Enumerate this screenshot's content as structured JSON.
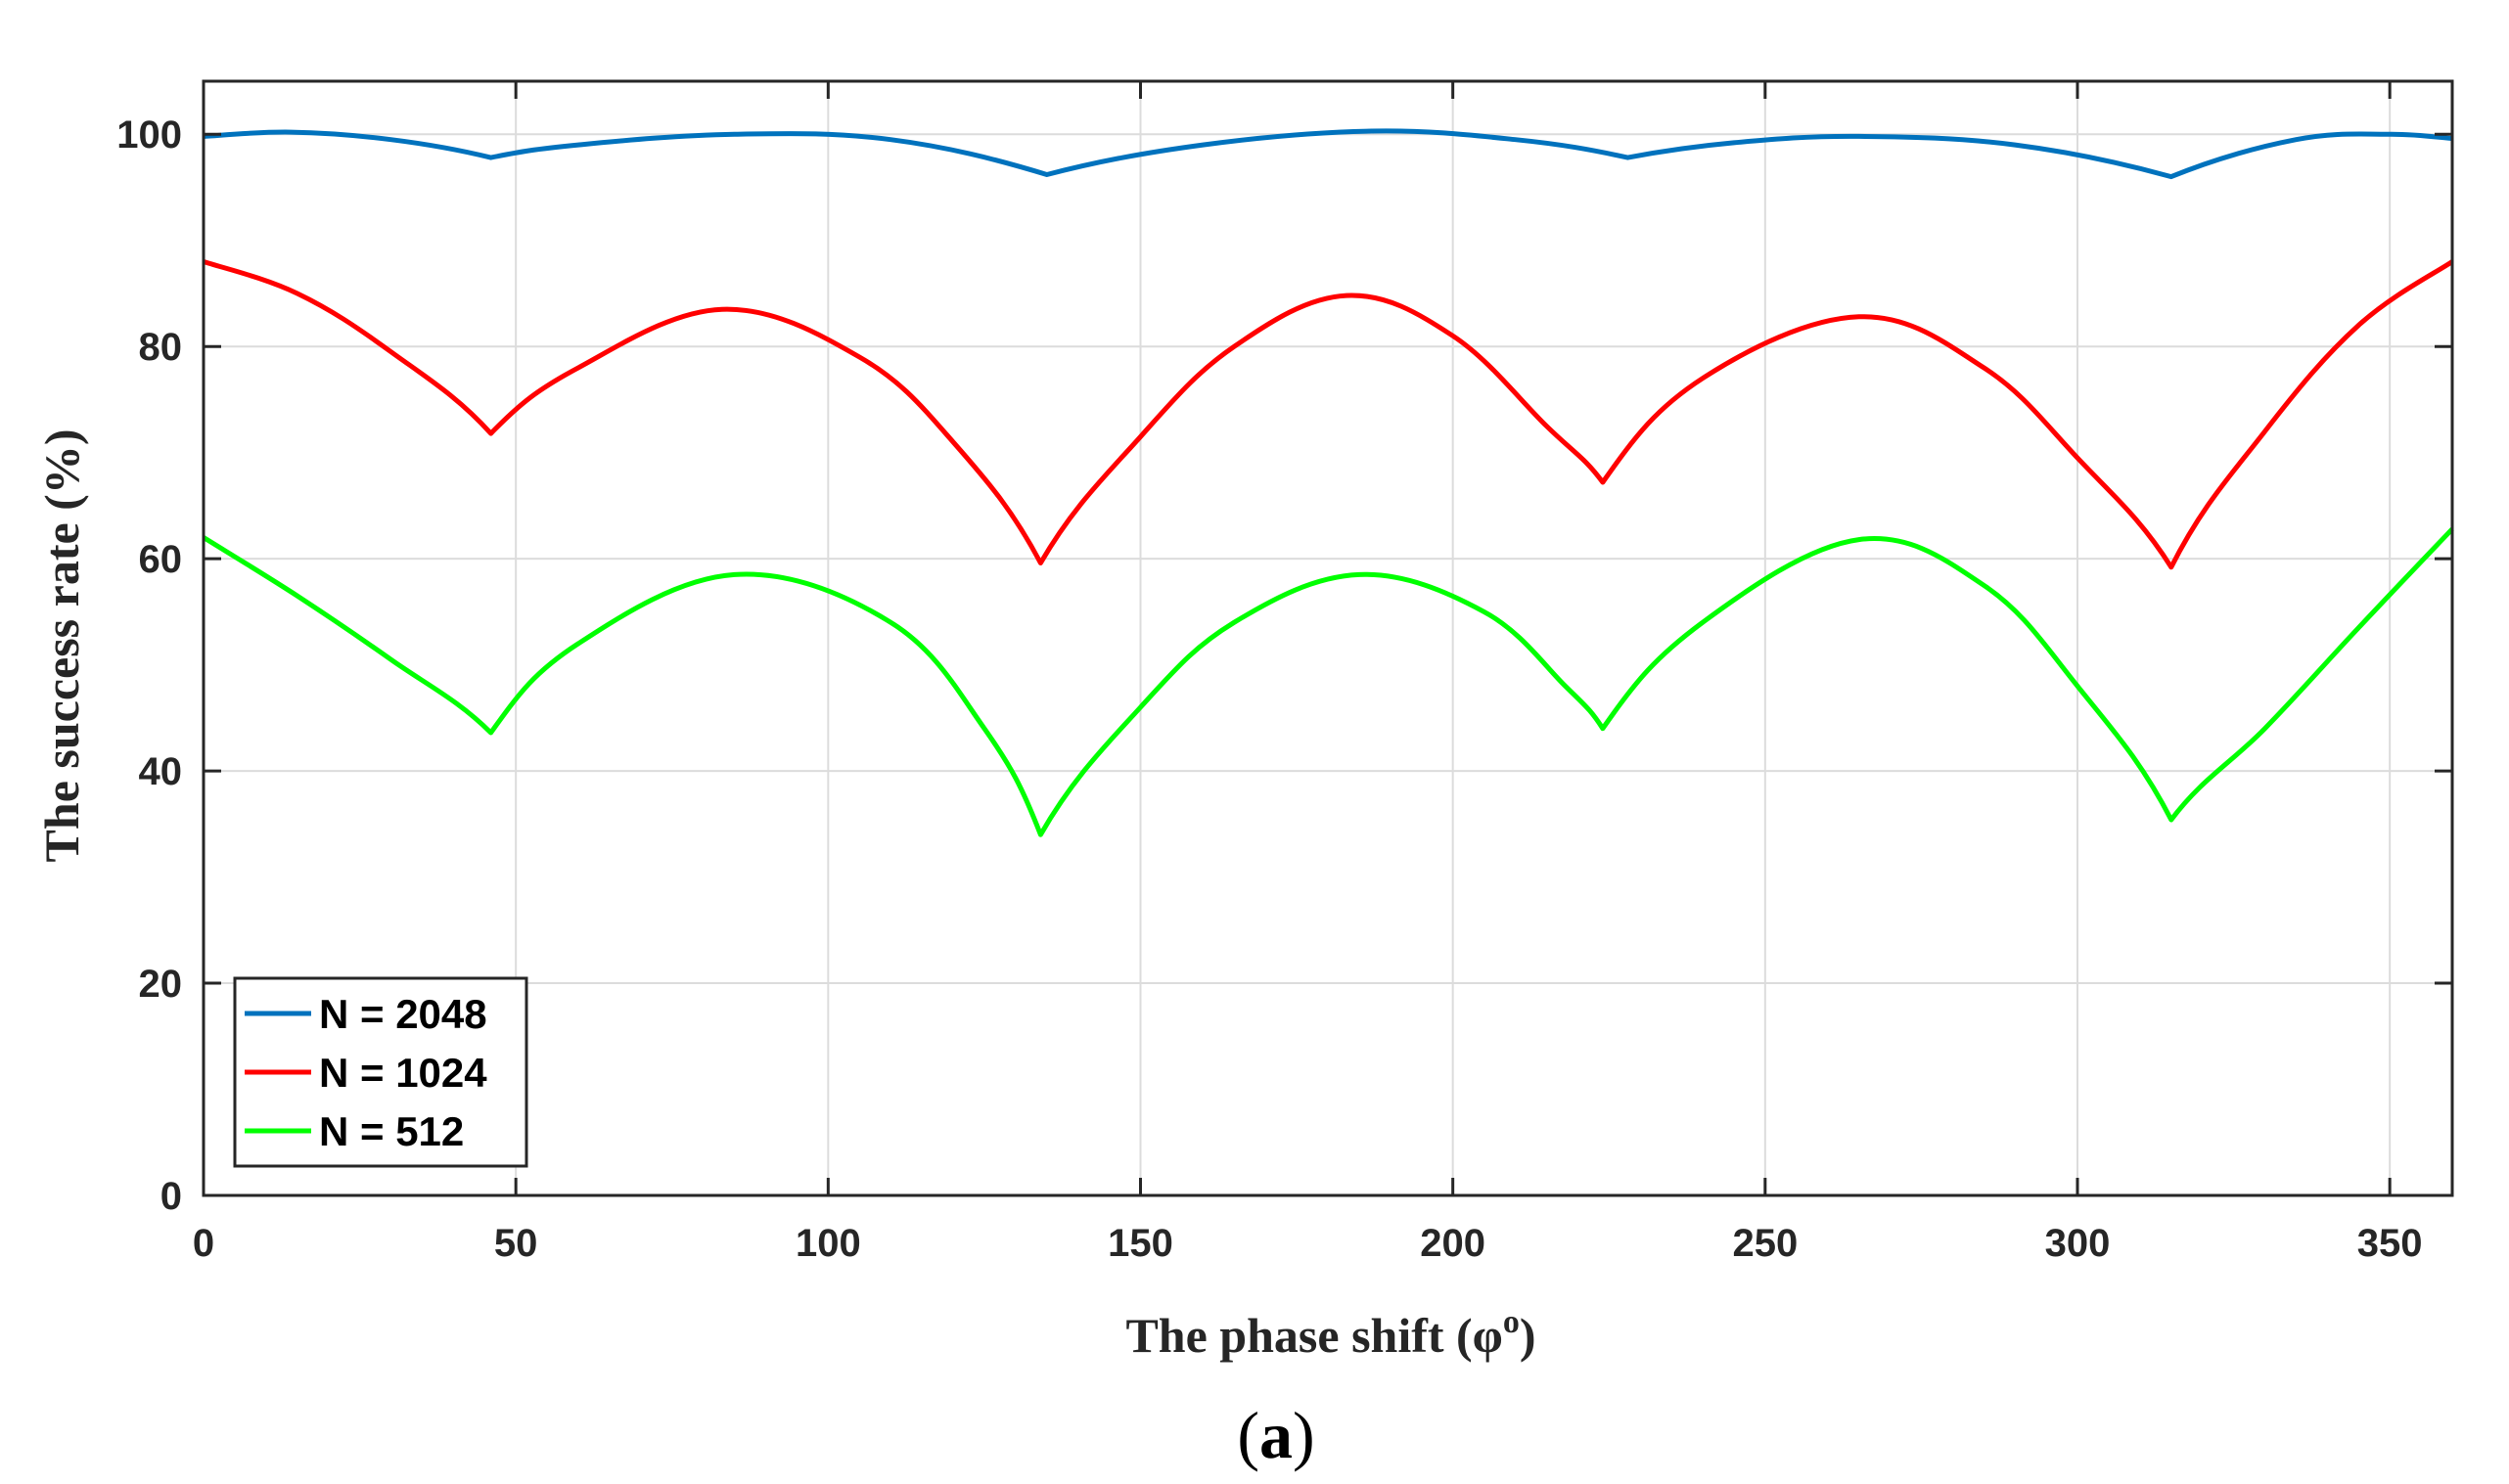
{
  "chart_data": {
    "type": "line",
    "title": "",
    "xlabel": "The phase shift (φ",
    "xlabel_superscript": "o",
    "xlabel_close": ")",
    "ylabel": "The success rate (%)",
    "xlim": [
      0,
      360
    ],
    "ylim": [
      0,
      105
    ],
    "xticks": [
      0,
      50,
      100,
      150,
      200,
      250,
      300,
      350
    ],
    "yticks": [
      0,
      20,
      40,
      60,
      80,
      100
    ],
    "grid": true,
    "legend_position": "bottom-left",
    "caption": "(a)",
    "caption_letter": "a",
    "caption_open": "(",
    "caption_close": ")",
    "series": [
      {
        "name": "N = 2048",
        "color": "#0072BD",
        "x": [
          0,
          14,
          30,
          46,
          60,
          85,
          110,
          135,
          160,
          187,
          210,
          228,
          245,
          265,
          290,
          315,
          335,
          350,
          360
        ],
        "values": [
          99.8,
          100.2,
          99.5,
          97.8,
          99.0,
          100.0,
          99.5,
          96.2,
          99.0,
          100.3,
          99.5,
          97.8,
          99.2,
          99.8,
          99.0,
          96.0,
          99.5,
          100.0,
          99.6
        ]
      },
      {
        "name": "N = 1024",
        "color": "#FF0000",
        "x": [
          0,
          15,
          30,
          46,
          60,
          83,
          105,
          120,
          134,
          150,
          165,
          183,
          200,
          215,
          224,
          240,
          265,
          285,
          300,
          315,
          330,
          345,
          360
        ],
        "values": [
          88.0,
          85.0,
          79.5,
          71.8,
          78.0,
          83.5,
          79.0,
          71.0,
          59.6,
          71.5,
          80.0,
          84.8,
          81.0,
          72.5,
          67.2,
          77.0,
          82.8,
          78.0,
          69.5,
          59.2,
          72.0,
          82.0,
          88.0
        ]
      },
      {
        "name": "N = 512",
        "color": "#00FF00",
        "x": [
          0,
          15,
          30,
          46,
          60,
          85,
          110,
          125,
          134,
          150,
          165,
          185,
          205,
          218,
          224,
          240,
          265,
          285,
          300,
          315,
          330,
          345,
          360
        ],
        "values": [
          62.0,
          56.5,
          50.5,
          43.6,
          52.0,
          58.5,
          54.0,
          44.0,
          34.0,
          46.0,
          54.0,
          58.5,
          55.0,
          48.0,
          44.0,
          54.0,
          61.8,
          57.5,
          48.0,
          35.4,
          44.0,
          53.5,
          62.8
        ]
      }
    ]
  }
}
